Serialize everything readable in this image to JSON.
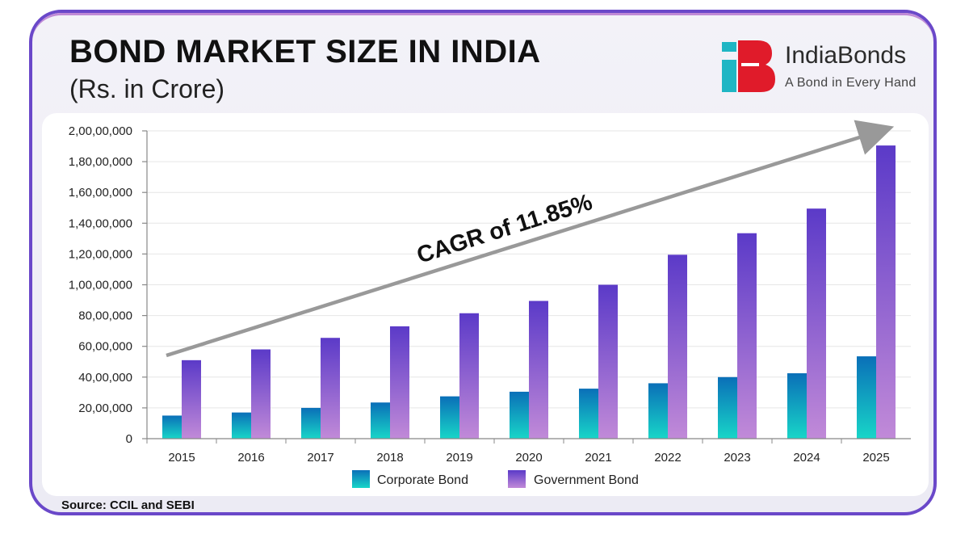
{
  "header": {
    "title": "BOND MARKET SIZE IN INDIA",
    "subtitle": "(Rs. in Crore)"
  },
  "brand": {
    "name": "IndiaBonds",
    "tagline": "A Bond in Every Hand",
    "logo_icon": "indiabonds-logo-icon",
    "colors": {
      "teal": "#1fb6c4",
      "red": "#e01b2a"
    }
  },
  "footer": {
    "source": "Source: CCIL and SEBI"
  },
  "colors": {
    "corporate_top": "#0a6fb8",
    "corporate_bottom": "#18d6c8",
    "government_top": "#5b3ac8",
    "government_bottom": "#c18ad8",
    "arrow": "#999999",
    "border": "#6a48c9"
  },
  "chart_data": {
    "type": "bar",
    "categories": [
      "2015",
      "2016",
      "2017",
      "2018",
      "2019",
      "2020",
      "2021",
      "2022",
      "2023",
      "2024",
      "2025"
    ],
    "series": [
      {
        "name": "Corporate Bond",
        "values": [
          1500000,
          1700000,
          2000000,
          2350000,
          2750000,
          3050000,
          3250000,
          3600000,
          4000000,
          4250000,
          5350000
        ]
      },
      {
        "name": "Government Bond",
        "values": [
          5100000,
          5800000,
          6550000,
          7300000,
          8150000,
          8950000,
          10000000,
          11950000,
          13350000,
          14950000,
          19050000
        ]
      }
    ],
    "yticks": [
      "0",
      "20,00,000",
      "40,00,000",
      "60,00,000",
      "80,00,000",
      "1,00,00,000",
      "1,20,00,000",
      "1,40,00,000",
      "1,60,00,000",
      "1,80,00,000",
      "2,00,00,000"
    ],
    "ylim": [
      0,
      20000000
    ],
    "annotation": "CAGR of 11.85%",
    "legend_position": "bottom",
    "grid": true
  }
}
